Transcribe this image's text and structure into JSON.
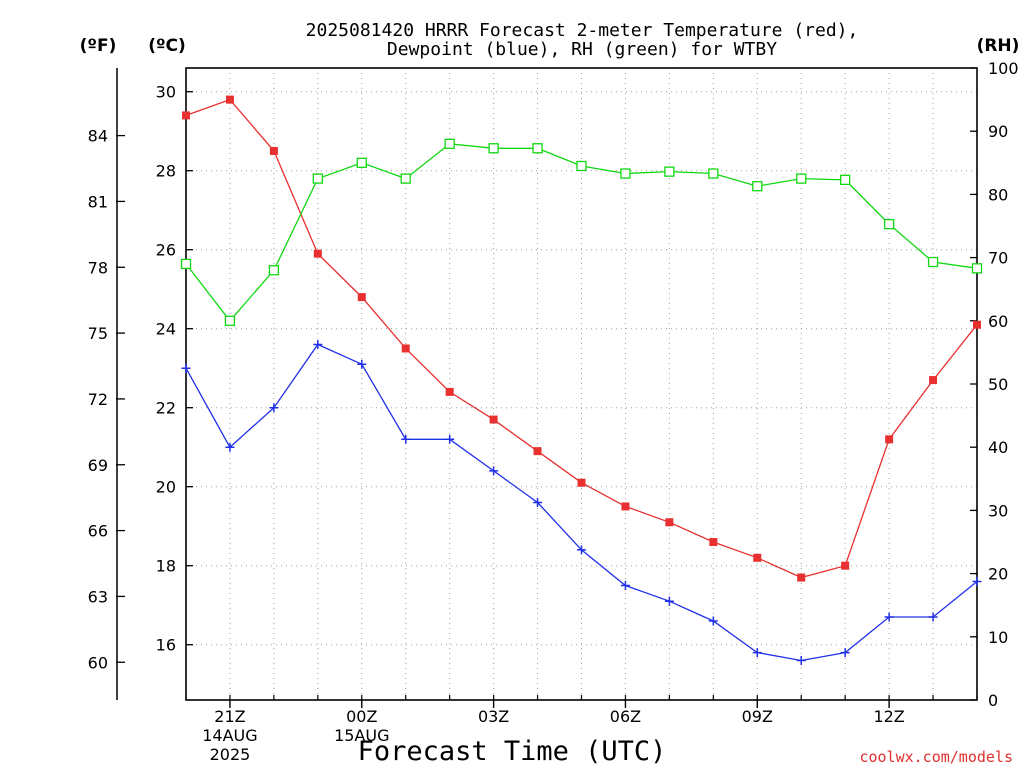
{
  "title_line1": "2025081420 HRRR Forecast 2-meter Temperature (red),",
  "title_line2": "Dewpoint (blue), RH (green) for WTBY",
  "xlabel": "Forecast Time (UTC)",
  "watermark": "coolwx.com/models",
  "axis_headers": {
    "fahrenheit": "(ºF)",
    "celsius": "(ºC)",
    "rh": "(RH)"
  },
  "colors": {
    "temperature": "#e83030",
    "dewpoint": "#2030e8",
    "rh": "#10d810",
    "grid": "#a0a0a0",
    "axis": "#000000"
  },
  "chart_data": {
    "type": "line",
    "title": "2025081420 HRRR Forecast 2-meter Temperature (red), Dewpoint (blue), RH (green) for WTBY",
    "xlabel": "Forecast Time (UTC)",
    "x": [
      "20Z",
      "21Z",
      "22Z",
      "23Z",
      "00Z",
      "01Z",
      "02Z",
      "03Z",
      "04Z",
      "05Z",
      "06Z",
      "07Z",
      "08Z",
      "09Z",
      "10Z",
      "11Z",
      "12Z",
      "13Z",
      "14Z"
    ],
    "xticks": [
      {
        "at": "21Z",
        "lines": [
          "21Z",
          "14AUG",
          "2025"
        ]
      },
      {
        "at": "00Z",
        "lines": [
          "00Z",
          "15AUG"
        ]
      },
      {
        "at": "03Z",
        "lines": [
          "03Z"
        ]
      },
      {
        "at": "06Z",
        "lines": [
          "06Z"
        ]
      },
      {
        "at": "09Z",
        "lines": [
          "09Z"
        ]
      },
      {
        "at": "12Z",
        "lines": [
          "12Z"
        ]
      }
    ],
    "y_celsius": {
      "range": [
        14.6,
        30.6
      ],
      "ticks": [
        16,
        18,
        20,
        22,
        24,
        26,
        28,
        30
      ]
    },
    "y_fahrenheit": {
      "ticks": [
        60,
        63,
        66,
        69,
        72,
        75,
        78,
        81,
        84
      ]
    },
    "y_rh": {
      "range": [
        0,
        100
      ],
      "ticks": [
        0,
        10,
        20,
        30,
        40,
        50,
        60,
        70,
        80,
        90,
        100
      ]
    },
    "grid": true,
    "series": [
      {
        "name": "Temperature (red)",
        "axis": "celsius",
        "marker": "filled-square",
        "values": [
          29.4,
          29.8,
          28.5,
          25.9,
          24.8,
          23.5,
          22.4,
          21.7,
          20.9,
          20.1,
          19.5,
          19.1,
          18.6,
          18.2,
          17.7,
          18.0,
          21.2,
          22.7,
          24.1
        ]
      },
      {
        "name": "Dewpoint (blue)",
        "axis": "celsius",
        "marker": "plus",
        "values": [
          23.0,
          21.0,
          22.0,
          23.6,
          23.1,
          21.2,
          21.2,
          20.4,
          19.6,
          18.4,
          17.5,
          17.1,
          16.6,
          15.8,
          15.6,
          15.8,
          16.7,
          16.7,
          17.6
        ]
      },
      {
        "name": "RH (green)",
        "axis": "rh",
        "marker": "open-square",
        "values": [
          69,
          60,
          68,
          82.5,
          85,
          82.5,
          88,
          87.3,
          87.3,
          84.5,
          83.3,
          83.6,
          83.3,
          81.3,
          82.5,
          82.3,
          75.3,
          69.3,
          68.3
        ]
      }
    ]
  }
}
